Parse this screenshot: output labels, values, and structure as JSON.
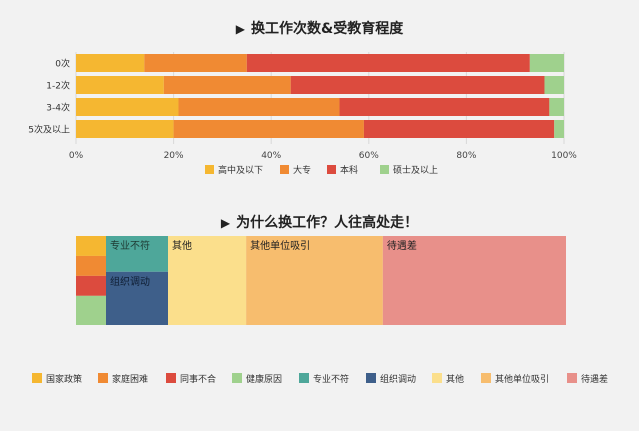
{
  "chart_data": [
    {
      "type": "bar",
      "orientation": "horizontal",
      "stacked": "percent",
      "title": "换工作次数&受教育程度",
      "categories": [
        "0次",
        "1-2次",
        "3-4次",
        "5次及以上"
      ],
      "series": [
        {
          "name": "高中及以下",
          "color": "#f5b731",
          "values": [
            14,
            18,
            21,
            20
          ]
        },
        {
          "name": "大专",
          "color": "#f08a33",
          "values": [
            21,
            26,
            33,
            39
          ]
        },
        {
          "name": "本科",
          "color": "#dc4b3e",
          "values": [
            58,
            52,
            43,
            39
          ]
        },
        {
          "name": "硕士及以上",
          "color": "#9fd18d",
          "values": [
            7,
            4,
            3,
            2
          ]
        }
      ],
      "xlim": [
        0,
        100
      ],
      "xticks": [
        "0%",
        "20%",
        "40%",
        "60%",
        "80%",
        "100%"
      ],
      "legend_position": "bottom"
    },
    {
      "type": "mosaic",
      "title": "为什么换工作？人往高处走！",
      "segments": [
        {
          "name": "国家政策",
          "color": "#f5b731",
          "value": 1.3
        },
        {
          "name": "家庭困难",
          "color": "#f08a33",
          "value": 1.3
        },
        {
          "name": "同事不合",
          "color": "#dc4b3e",
          "value": 1.3
        },
        {
          "name": "健康原因",
          "color": "#9fd18d",
          "value": 1.9
        },
        {
          "name": "专业不符",
          "color": "#4ea79a",
          "value": 4.3
        },
        {
          "name": "组织调动",
          "color": "#3e5f8a",
          "value": 6.4
        },
        {
          "name": "其他",
          "color": "#fbdf8c",
          "value": 16
        },
        {
          "name": "其他单位吸引",
          "color": "#f7bd6e",
          "value": 28
        },
        {
          "name": "待遇差",
          "color": "#e8908a",
          "value": 37.5
        }
      ],
      "segment_labels": [
        "专业不符",
        "组织调动",
        "其他",
        "其他单位吸引",
        "待遇差"
      ],
      "legend_position": "bottom"
    }
  ]
}
